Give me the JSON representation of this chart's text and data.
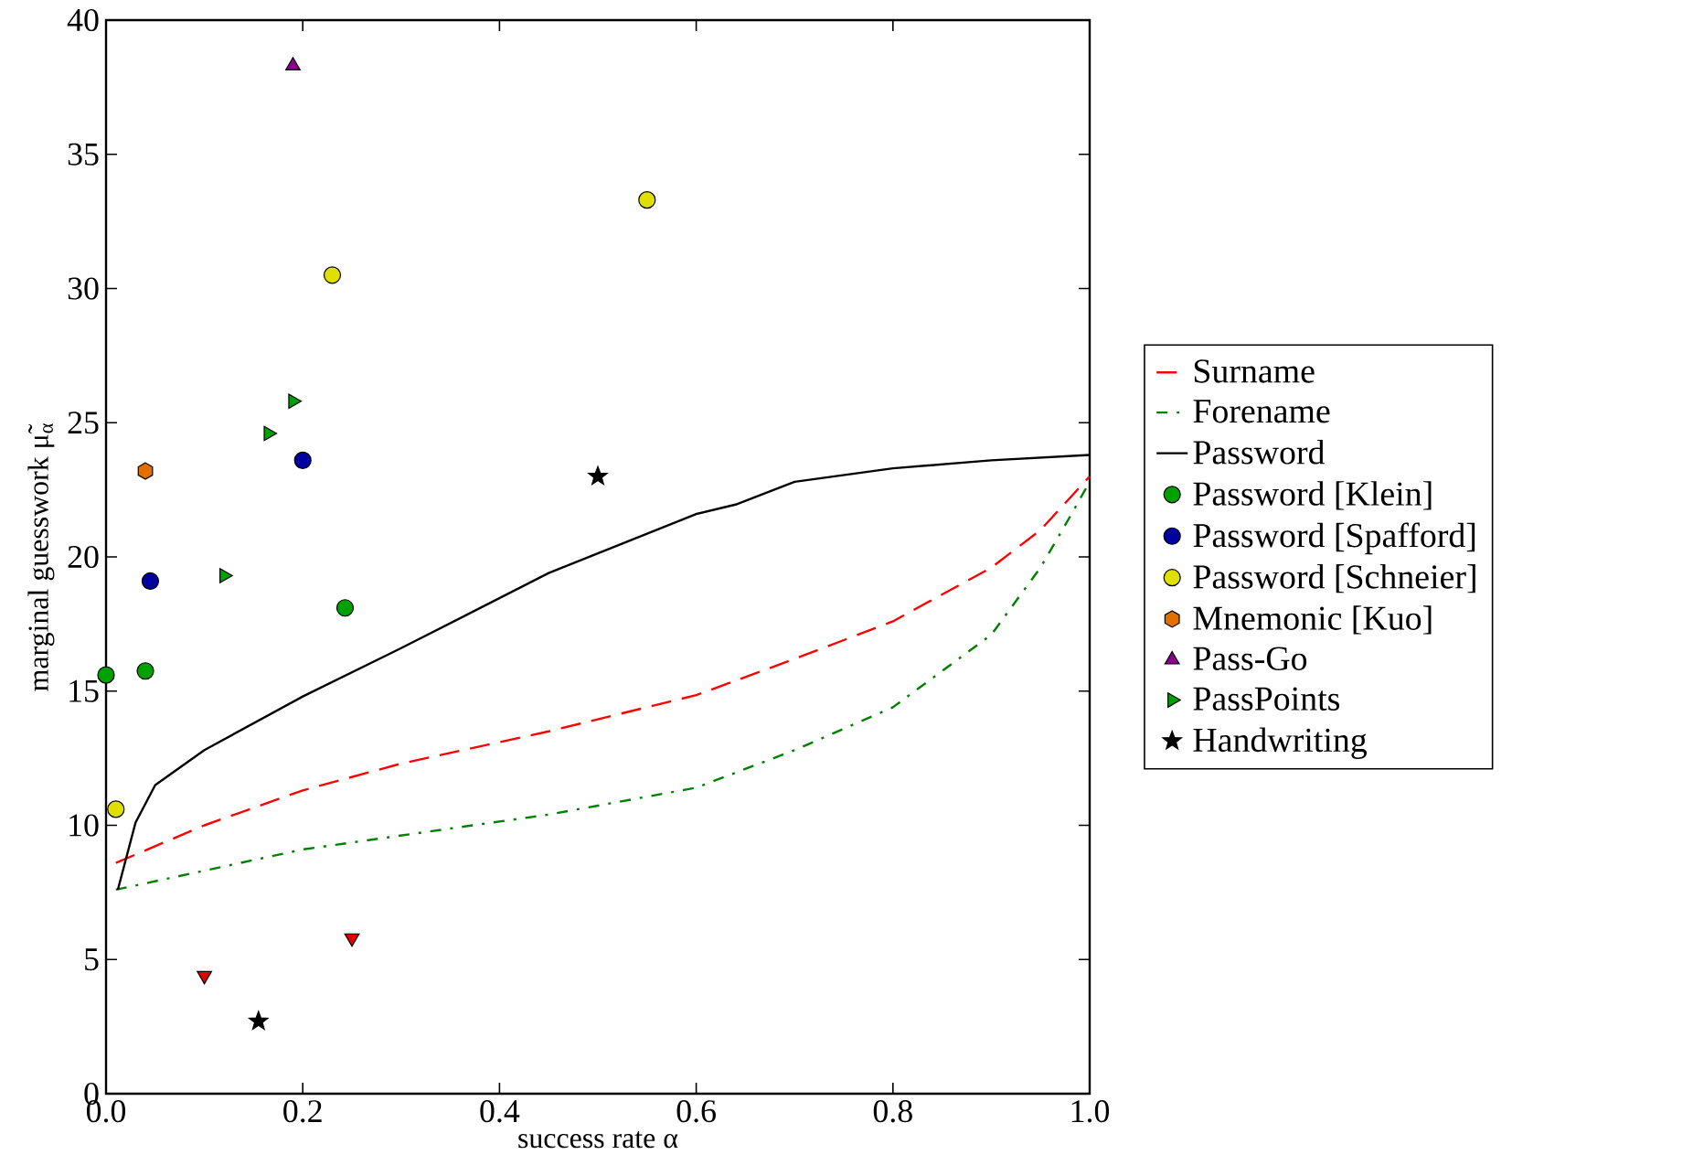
{
  "chart_data": {
    "type": "scatter",
    "xlabel": "success rate α",
    "ylabel": "marginal guesswork μ̃$_{α}$",
    "xlim": [
      0,
      1
    ],
    "ylim": [
      0,
      40
    ],
    "xticks": [
      {
        "value": 0,
        "label": "0.0"
      },
      0.2,
      0.4,
      0.6,
      0.8,
      {
        "value": 1,
        "label": "1.0"
      }
    ],
    "yticks": [
      0,
      5,
      10,
      15,
      20,
      25,
      30,
      35,
      40
    ],
    "grid": false,
    "legend": "right",
    "series": [
      {
        "name": "Surname",
        "type": "line",
        "color": "#ff0000",
        "line_style": "dashed",
        "x": [
          0.01,
          0.1,
          0.2,
          0.3,
          0.45,
          0.6,
          0.7,
          0.8,
          0.9,
          0.95,
          1.0
        ],
        "values": [
          8.6,
          10.0,
          11.3,
          12.3,
          13.5,
          14.85,
          16.2,
          17.6,
          19.6,
          21.0,
          23.0
        ]
      },
      {
        "name": "Forename",
        "type": "line",
        "color": "#008000",
        "line_style": "dashdot",
        "x": [
          0.01,
          0.2,
          0.45,
          0.6,
          0.7,
          0.8,
          0.9,
          0.95,
          0.98,
          1.0
        ],
        "values": [
          7.6,
          9.1,
          10.4,
          11.4,
          12.8,
          14.4,
          17.1,
          19.6,
          21.5,
          22.8
        ]
      },
      {
        "name": "Password",
        "type": "line",
        "color": "#000000",
        "line_style": "solid",
        "x": [
          0.012,
          0.03,
          0.05,
          0.1,
          0.2,
          0.3,
          0.45,
          0.6,
          0.64,
          0.7,
          0.8,
          0.9,
          1.0
        ],
        "values": [
          7.6,
          10.1,
          11.5,
          12.8,
          14.8,
          16.6,
          19.4,
          21.6,
          21.95,
          22.8,
          23.3,
          23.6,
          23.8
        ]
      },
      {
        "name": "Password [Klein]",
        "marker": "circle",
        "color": "#00a000",
        "x": [
          0.0,
          0.04,
          0.243
        ],
        "values": [
          15.6,
          15.75,
          18.1
        ]
      },
      {
        "name": "Password [Spafford]",
        "marker": "circle",
        "color": "#0000a0",
        "x": [
          0.045,
          0.2
        ],
        "values": [
          19.1,
          23.6
        ]
      },
      {
        "name": "Password [Schneier]",
        "marker": "circle",
        "color": "#e0e000",
        "x": [
          0.01,
          0.23,
          0.55
        ],
        "values": [
          10.6,
          30.5,
          33.3
        ]
      },
      {
        "name": "Mnemonic [Kuo]",
        "color": "#e07000",
        "x": [
          0.04
        ],
        "values": [
          23.2
        ]
      },
      {
        "name": "Pass-Go",
        "marker": "triangle",
        "color": "#900090",
        "x": [
          0.19
        ],
        "values": [
          38.3
        ]
      },
      {
        "name": "PassPoints",
        "marker": "triangle-right",
        "color": "#00a000",
        "x": [
          0.12,
          0.165,
          0.19
        ],
        "values": [
          19.3,
          24.6,
          25.8
        ]
      },
      {
        "marker": "triangle-down",
        "color": "#e00000",
        "x": [
          0.1,
          0.25
        ],
        "values": [
          4.4,
          5.8
        ]
      },
      {
        "name": "Handwriting",
        "marker": "star",
        "color": "#000000",
        "x": [
          0.155,
          0.5
        ],
        "values": [
          2.7,
          23.0
        ]
      }
    ]
  }
}
